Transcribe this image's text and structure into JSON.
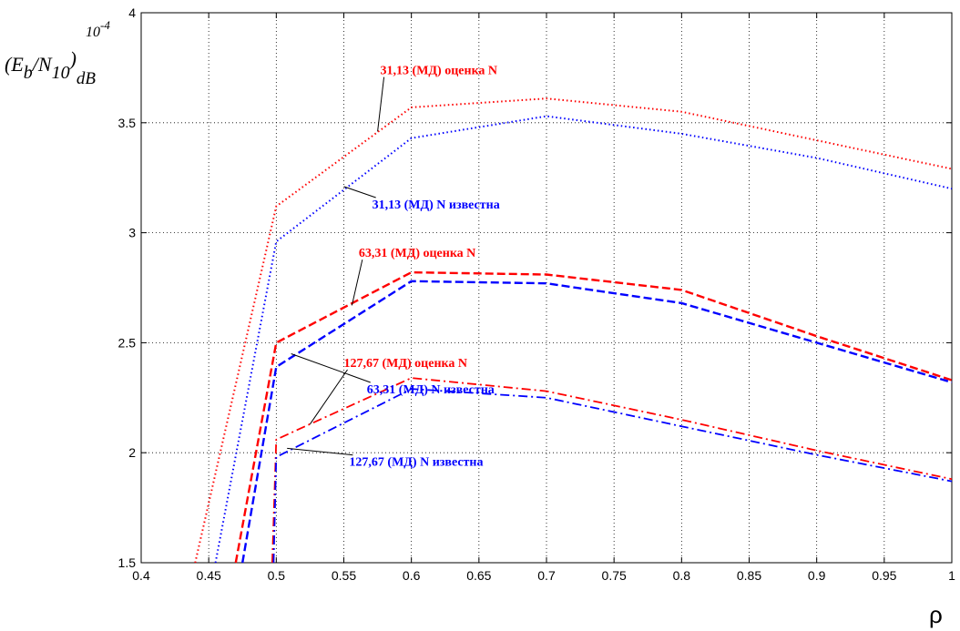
{
  "chart_data": {
    "type": "line",
    "ylabel_main": "(E",
    "ylabel_sub_b": "b",
    "ylabel_mid": "/N",
    "ylabel_sub_10": "10",
    "ylabel_close": ")",
    "ylabel_sub_db": "dB",
    "exponent": "10",
    "exponent_power": "-4",
    "xlabel": "ρ",
    "xlim": [
      0.4,
      1.0
    ],
    "ylim": [
      1.5,
      4.0
    ],
    "grid": true,
    "x_ticks": [
      "0.4",
      "0.45",
      "0.5",
      "0.55",
      "0.6",
      "0.65",
      "0.7",
      "0.75",
      "0.8",
      "0.85",
      "0.9",
      "0.95",
      "1"
    ],
    "y_ticks": [
      "1.5",
      "2",
      "2.5",
      "3",
      "3.5",
      "4"
    ],
    "series": [
      {
        "name": "31,13 (МД) оценка N",
        "color": "#ff0000",
        "style": "dotted",
        "x": [
          0.44,
          0.5,
          0.6,
          0.7,
          0.8,
          0.9,
          1.0
        ],
        "y": [
          1.5,
          3.12,
          3.57,
          3.61,
          3.55,
          3.42,
          3.29
        ]
      },
      {
        "name": "31,13 (МД) N известна",
        "color": "#0000ff",
        "style": "dotted",
        "x": [
          0.455,
          0.5,
          0.6,
          0.7,
          0.8,
          0.9,
          1.0
        ],
        "y": [
          1.5,
          2.96,
          3.43,
          3.53,
          3.45,
          3.34,
          3.2
        ]
      },
      {
        "name": "63,31 (МД) оценка N",
        "color": "#ff0000",
        "style": "dashed",
        "x": [
          0.47,
          0.5,
          0.6,
          0.7,
          0.8,
          0.9,
          1.0
        ],
        "y": [
          1.5,
          2.5,
          2.82,
          2.81,
          2.74,
          2.53,
          2.33
        ]
      },
      {
        "name": "63,31 (МД) N известна",
        "color": "#0000ff",
        "style": "dashed",
        "x": [
          0.475,
          0.5,
          0.6,
          0.7,
          0.8,
          0.9,
          1.0
        ],
        "y": [
          1.5,
          2.39,
          2.78,
          2.77,
          2.68,
          2.5,
          2.32
        ]
      },
      {
        "name": "127,67 (МД) оценка N",
        "color": "#ff0000",
        "style": "dashdot",
        "x": [
          0.497,
          0.5,
          0.6,
          0.7,
          0.8,
          0.9,
          1.0
        ],
        "y": [
          1.5,
          2.06,
          2.34,
          2.28,
          2.15,
          2.01,
          1.88
        ]
      },
      {
        "name": "127,67 (МД) N известна",
        "color": "#0000ff",
        "style": "dashdot",
        "x": [
          0.498,
          0.5,
          0.6,
          0.7,
          0.8,
          0.9,
          1.0
        ],
        "y": [
          1.5,
          1.98,
          2.29,
          2.25,
          2.12,
          1.99,
          1.87
        ]
      }
    ],
    "annotations": [
      {
        "text": "31,13 (МД) оценка N",
        "color": "#ff0000",
        "x": 0.577,
        "y": 3.72,
        "point": [
          0.575,
          3.46
        ]
      },
      {
        "text": "31,13 (МД) N известна",
        "color": "#0000ff",
        "x": 0.571,
        "y": 3.11,
        "point": [
          0.55,
          3.21
        ]
      },
      {
        "text": "63,31 (МД) оценка N",
        "color": "#ff0000",
        "x": 0.561,
        "y": 2.89,
        "point": [
          0.556,
          2.67
        ]
      },
      {
        "text": "63,31 (МД) N известна",
        "color": "#0000ff",
        "x": 0.567,
        "y": 2.27,
        "point": [
          0.511,
          2.45
        ]
      },
      {
        "text": "127,67 (МД) оценка N",
        "color": "#ff0000",
        "x": 0.55,
        "y": 2.39,
        "point": [
          0.525,
          2.13
        ]
      },
      {
        "text": "127,67 (МД) N известна",
        "color": "#0000ff",
        "x": 0.554,
        "y": 1.94,
        "point": [
          0.508,
          2.02
        ]
      }
    ]
  }
}
